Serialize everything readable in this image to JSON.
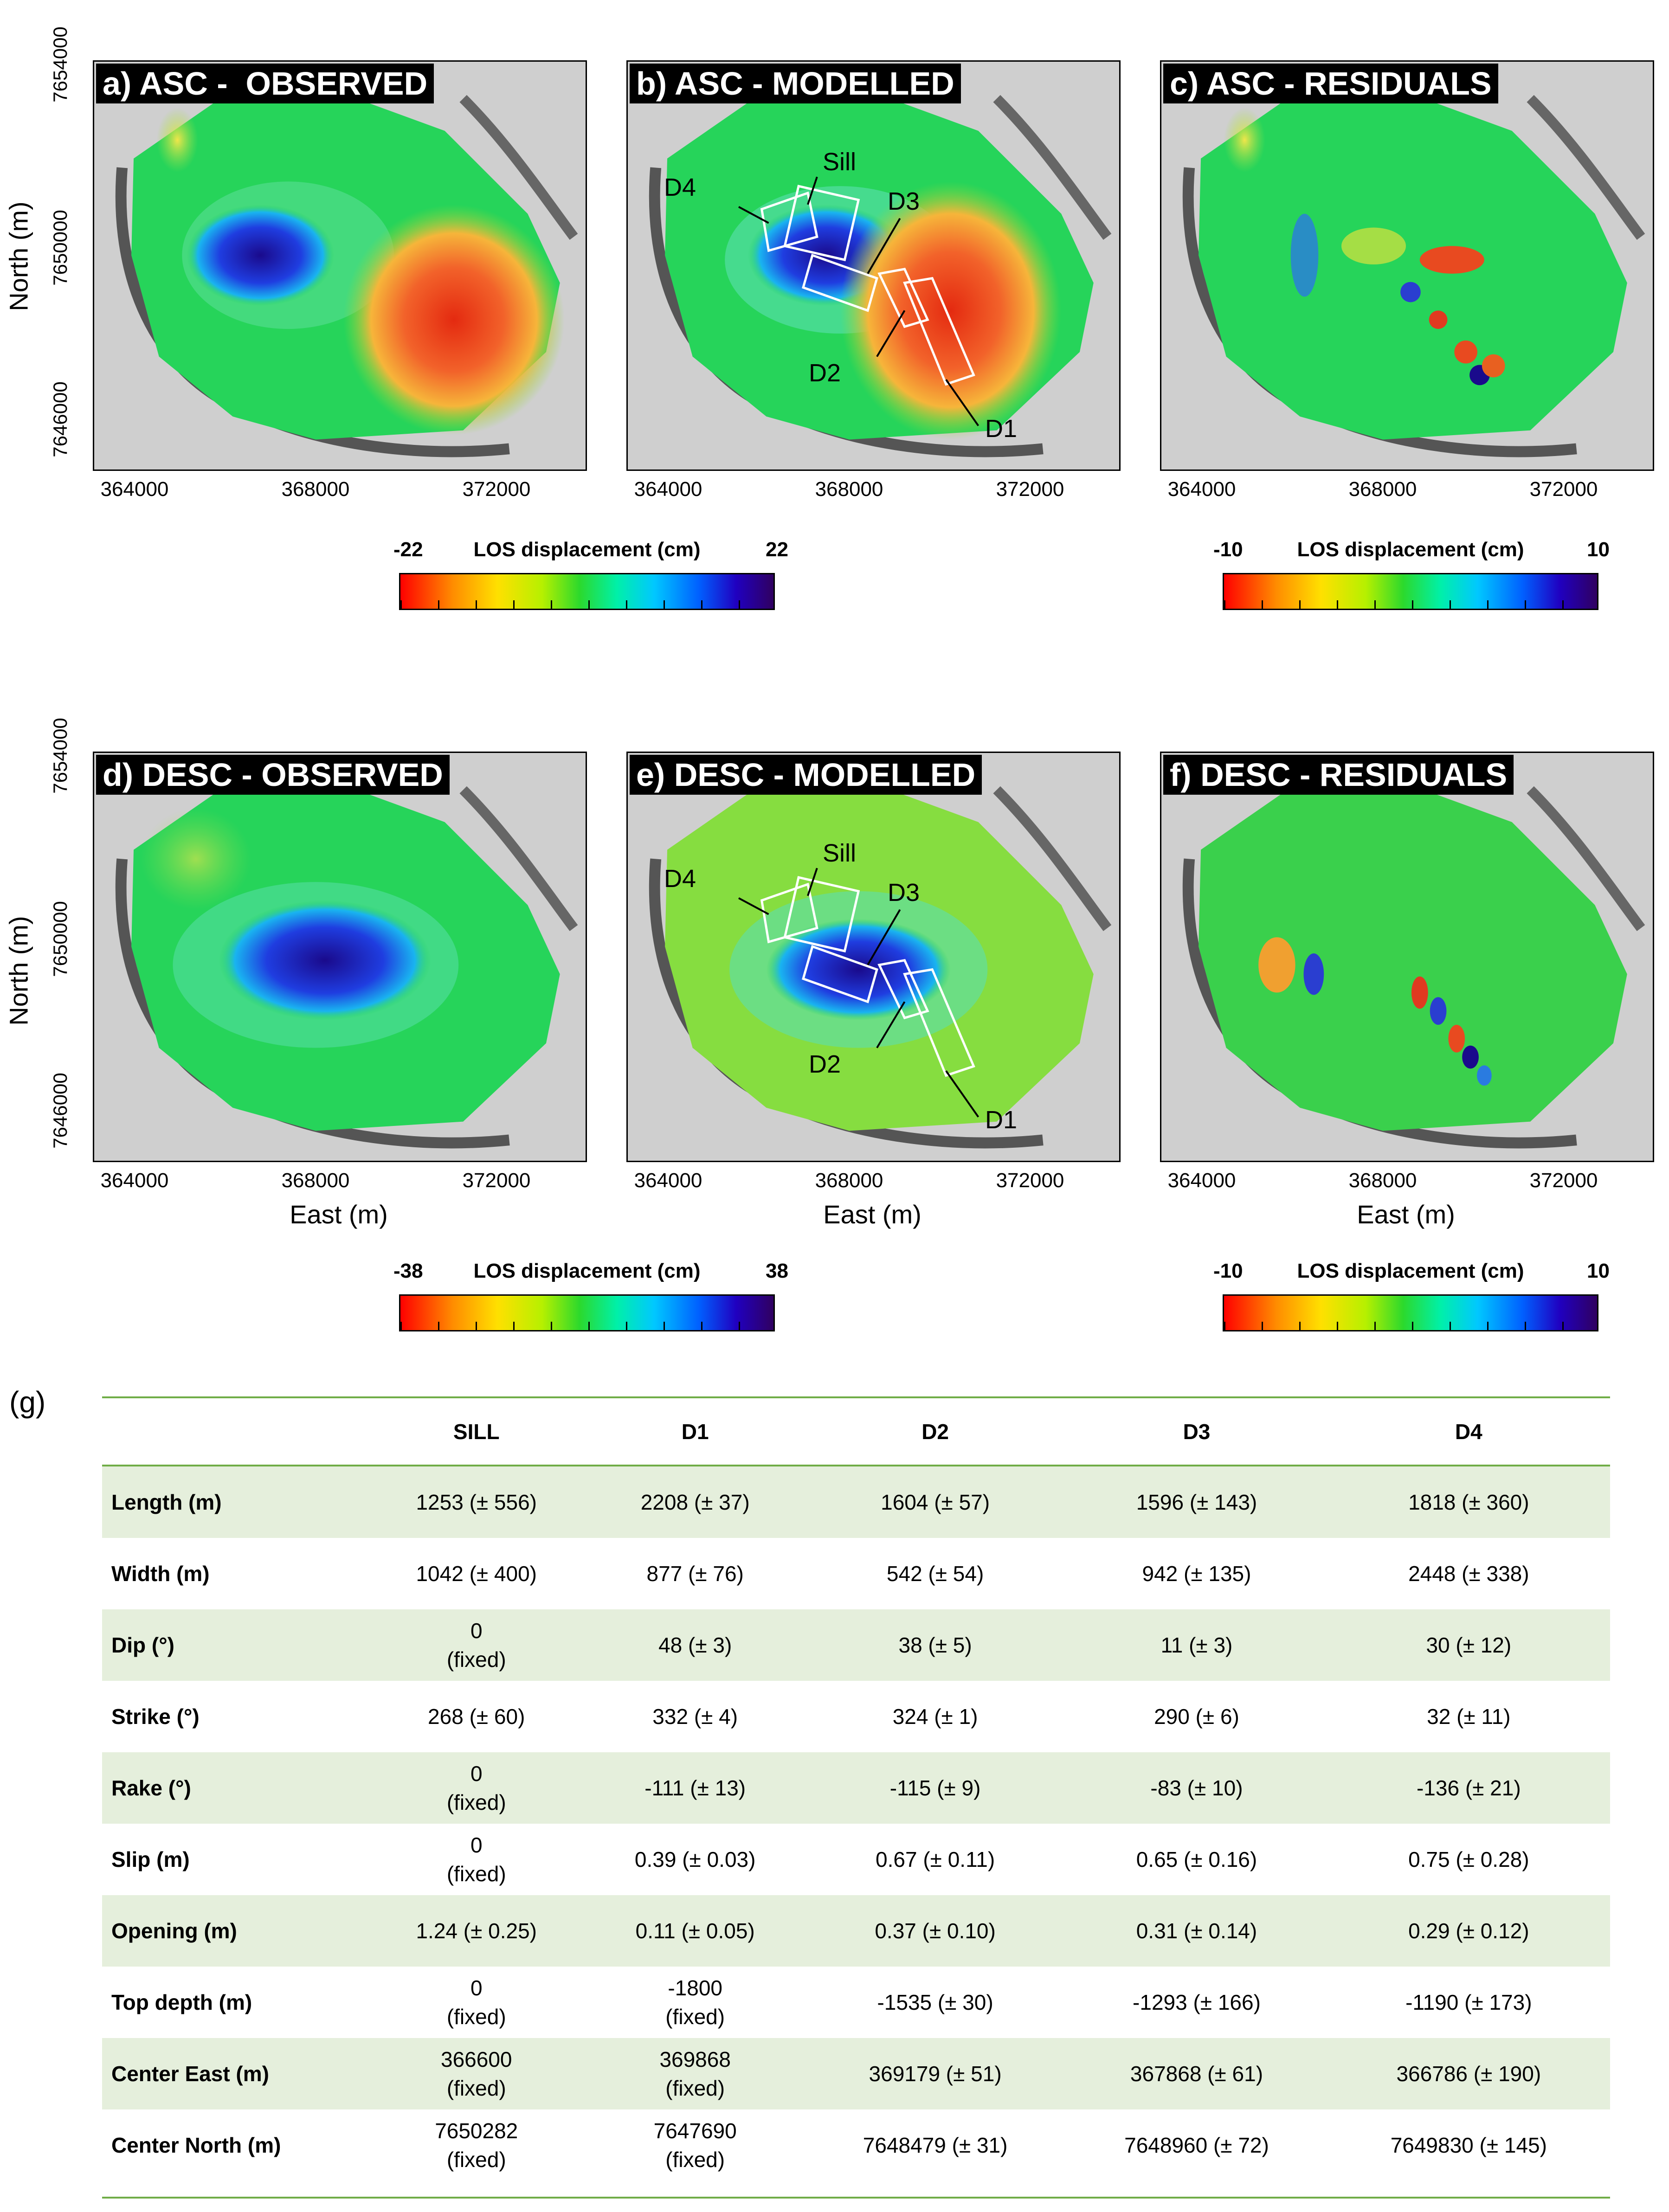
{
  "panels": [
    {
      "id": "a",
      "title": "a) ASC -  OBSERVED"
    },
    {
      "id": "b",
      "title": "b) ASC - MODELLED"
    },
    {
      "id": "c",
      "title": "c) ASC - RESIDUALS"
    },
    {
      "id": "d",
      "title": "d) DESC - OBSERVED"
    },
    {
      "id": "e",
      "title": "e) DESC - MODELLED"
    },
    {
      "id": "f",
      "title": "f) DESC - RESIDUALS"
    }
  ],
  "axes": {
    "x_ticks": [
      "364000",
      "368000",
      "372000"
    ],
    "y_ticks": [
      "7654000",
      "7650000",
      "7646000"
    ],
    "x_title": "East (m)",
    "y_title": "North (m)"
  },
  "annotations": {
    "sill": "Sill",
    "d1": "D1",
    "d2": "D2",
    "d3": "D3",
    "d4": "D4"
  },
  "colorbars": {
    "asc": {
      "min": "-22",
      "max": "22",
      "label": "LOS displacement (cm)"
    },
    "asc_res": {
      "min": "-10",
      "max": "10",
      "label": "LOS displacement (cm)"
    },
    "desc": {
      "min": "-38",
      "max": "38",
      "label": "LOS displacement (cm)"
    },
    "desc_res": {
      "min": "-10",
      "max": "10",
      "label": "LOS displacement (cm)"
    }
  },
  "table": {
    "panel_label": "(g)",
    "columns": [
      "SILL",
      "D1",
      "D2",
      "D3",
      "D4"
    ],
    "rows": [
      {
        "label": "Length (m)",
        "cells": [
          [
            "1253 (± 556)"
          ],
          [
            "2208 (± 37)"
          ],
          [
            "1604 (± 57)"
          ],
          [
            "1596 (± 143)"
          ],
          [
            "1818 (± 360)"
          ]
        ]
      },
      {
        "label": "Width (m)",
        "cells": [
          [
            "1042 (± 400)"
          ],
          [
            "877 (± 76)"
          ],
          [
            "542 (± 54)"
          ],
          [
            "942 (± 135)"
          ],
          [
            "2448 (± 338)"
          ]
        ]
      },
      {
        "label": "Dip (°)",
        "cells": [
          [
            "0",
            "(fixed)"
          ],
          [
            "48 (± 3)"
          ],
          [
            "38 (± 5)"
          ],
          [
            "11 (± 3)"
          ],
          [
            "30 (± 12)"
          ]
        ]
      },
      {
        "label": "Strike (°)",
        "cells": [
          [
            "268 (± 60)"
          ],
          [
            "332 (± 4)"
          ],
          [
            "324 (± 1)"
          ],
          [
            "290 (± 6)"
          ],
          [
            "32 (± 11)"
          ]
        ]
      },
      {
        "label": "Rake (°)",
        "cells": [
          [
            "0",
            "(fixed)"
          ],
          [
            "-111 (± 13)"
          ],
          [
            "-115 (± 9)"
          ],
          [
            "-83 (± 10)"
          ],
          [
            "-136 (± 21)"
          ]
        ]
      },
      {
        "label": "Slip (m)",
        "cells": [
          [
            "0",
            "(fixed)"
          ],
          [
            "0.39 (± 0.03)"
          ],
          [
            "0.67 (± 0.11)"
          ],
          [
            "0.65 (± 0.16)"
          ],
          [
            "0.75 (± 0.28)"
          ]
        ]
      },
      {
        "label": "Opening (m)",
        "cells": [
          [
            "1.24 (± 0.25)"
          ],
          [
            "0.11 (± 0.05)"
          ],
          [
            "0.37 (± 0.10)"
          ],
          [
            "0.31 (± 0.14)"
          ],
          [
            "0.29 (± 0.12)"
          ]
        ]
      },
      {
        "label": "Top depth (m)",
        "cells": [
          [
            "0",
            "(fixed)"
          ],
          [
            "-1800",
            "(fixed)"
          ],
          [
            "-1535 (± 30)"
          ],
          [
            "-1293 (± 166)"
          ],
          [
            "-1190 (± 173)"
          ]
        ]
      },
      {
        "label": "Center East (m)",
        "cells": [
          [
            "366600",
            "(fixed)"
          ],
          [
            "369868",
            "(fixed)"
          ],
          [
            "369179 (± 51)"
          ],
          [
            "367868 (± 61)"
          ],
          [
            "366786 (± 190)"
          ]
        ]
      },
      {
        "label": "Center North (m)",
        "cells": [
          [
            "7650282",
            "(fixed)"
          ],
          [
            "7647690",
            "(fixed)"
          ],
          [
            "7648479 (± 31)"
          ],
          [
            "7648960 (± 72)"
          ],
          [
            "7649830 (± 145)"
          ]
        ]
      }
    ]
  }
}
